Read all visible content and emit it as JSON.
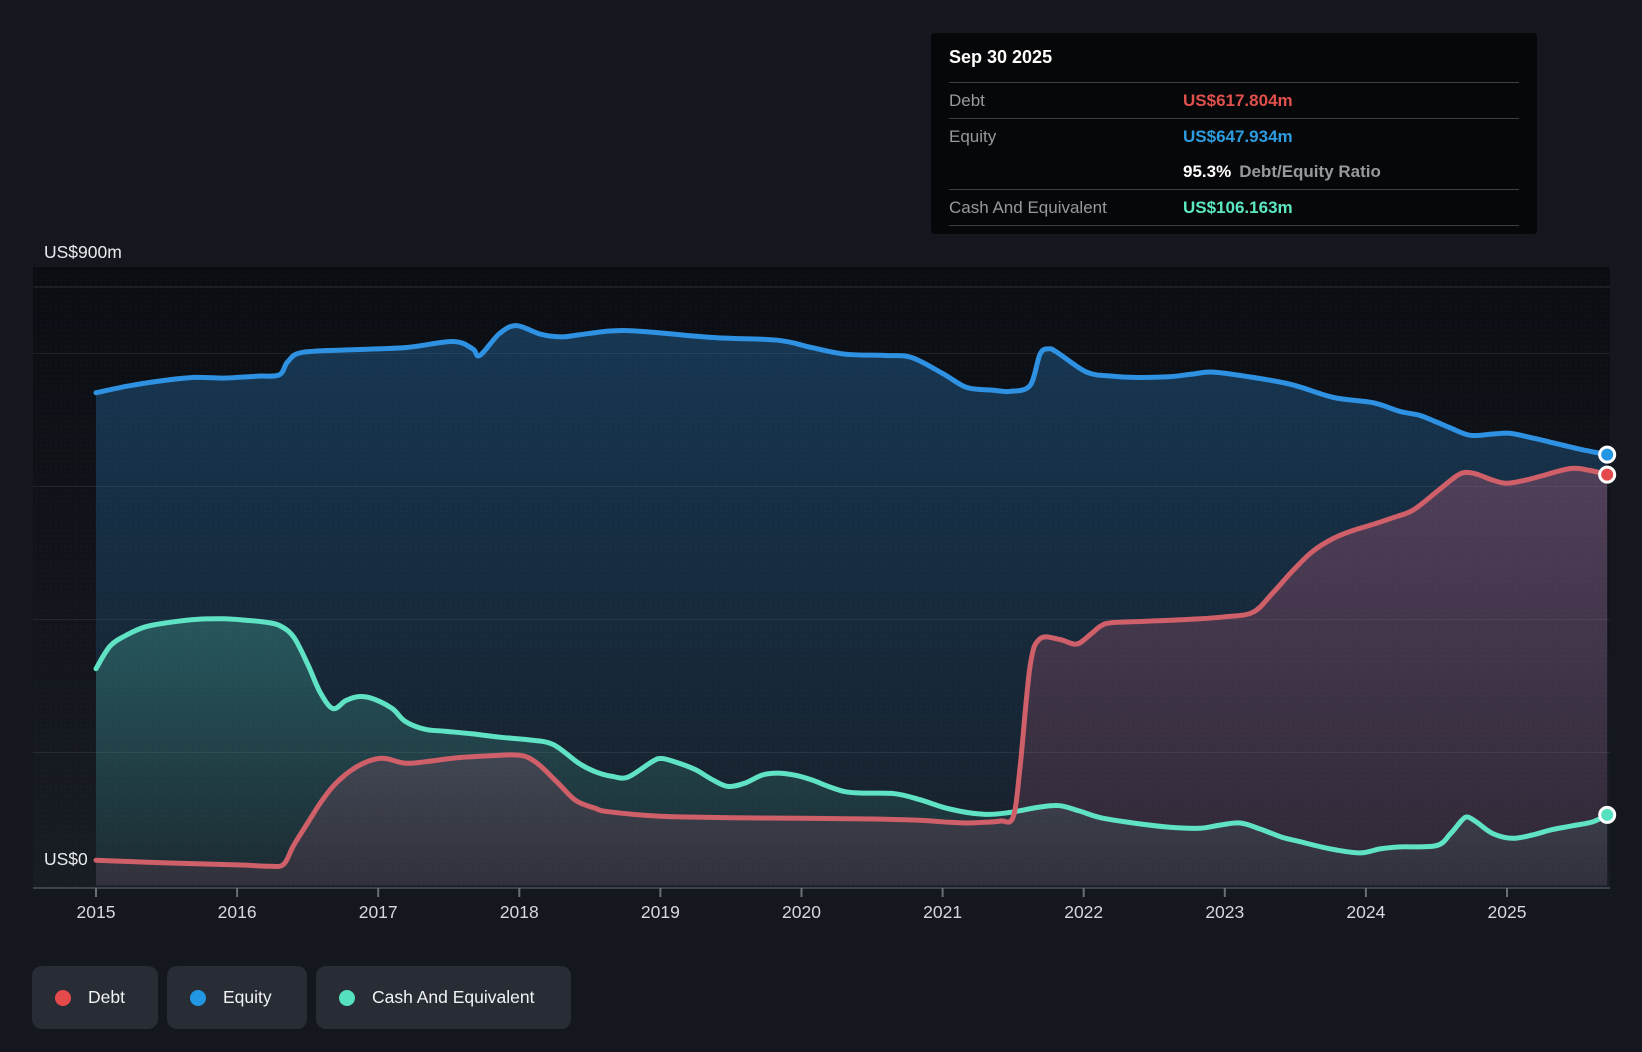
{
  "tooltip": {
    "date": "Sep 30 2025",
    "debt_label": "Debt",
    "debt_value": "US$617.804m",
    "equity_label": "Equity",
    "equity_value": "US$647.934m",
    "ratio_value": "95.3%",
    "ratio_label": "Debt/Equity Ratio",
    "cash_label": "Cash And Equivalent",
    "cash_value": "US$106.163m"
  },
  "y_axis": {
    "label_top": "US$900m",
    "label_zero": "US$0"
  },
  "x_axis": {
    "years": [
      2015,
      2016,
      2017,
      2018,
      2019,
      2020,
      2021,
      2022,
      2023,
      2024,
      2025
    ]
  },
  "legend": {
    "items": [
      {
        "label": "Debt",
        "series": "debt"
      },
      {
        "label": "Equity",
        "series": "equity"
      },
      {
        "label": "Cash And Equivalent",
        "series": "cash"
      }
    ]
  },
  "colors": {
    "debt_line": "#cf5f68",
    "equity_line": "#2e91e2",
    "cash_line": "#5fe3c4",
    "debt_accent": "#e4494c",
    "equity_accent": "#2196e3",
    "cash_accent": "#55e0c0",
    "debt_value_text": "#e0504c",
    "equity_value_text": "#2d9ce0",
    "cash_value_text": "#5ce8c2",
    "debt_fill": "199,93,124",
    "equity_fill": "42,128,198",
    "cash_fill": "88,224,193"
  },
  "chart_data": {
    "type": "area",
    "title": "Debt to Equity history",
    "x_range": [
      2014.55,
      2025.73
    ],
    "ylim": [
      0,
      900
    ],
    "gridline_values": [
      200,
      400,
      600,
      800,
      900
    ],
    "grid": true,
    "legend_position": "bottom",
    "units": "US$ millions",
    "series": [
      {
        "name": "Equity",
        "key": "equity",
        "points": [
          [
            2015.0,
            741
          ],
          [
            2015.25,
            752
          ],
          [
            2015.5,
            760
          ],
          [
            2015.7,
            764
          ],
          [
            2015.9,
            763
          ],
          [
            2016.0,
            764
          ],
          [
            2016.15,
            766
          ],
          [
            2016.3,
            768
          ],
          [
            2016.36,
            788
          ],
          [
            2016.47,
            802
          ],
          [
            2016.87,
            806
          ],
          [
            2017.2,
            809
          ],
          [
            2017.53,
            818
          ],
          [
            2017.67,
            807
          ],
          [
            2017.72,
            797
          ],
          [
            2017.86,
            830
          ],
          [
            2017.98,
            842
          ],
          [
            2018.15,
            829
          ],
          [
            2018.3,
            825
          ],
          [
            2018.42,
            828
          ],
          [
            2018.66,
            834
          ],
          [
            2018.89,
            833
          ],
          [
            2019.37,
            824
          ],
          [
            2019.83,
            820
          ],
          [
            2020.07,
            809
          ],
          [
            2020.31,
            799
          ],
          [
            2020.6,
            797
          ],
          [
            2020.78,
            794
          ],
          [
            2021.0,
            770
          ],
          [
            2021.17,
            749
          ],
          [
            2021.35,
            745
          ],
          [
            2021.48,
            743
          ],
          [
            2021.62,
            752
          ],
          [
            2021.69,
            799
          ],
          [
            2021.75,
            807
          ],
          [
            2021.81,
            802
          ],
          [
            2022.02,
            772
          ],
          [
            2022.2,
            766
          ],
          [
            2022.35,
            764
          ],
          [
            2022.6,
            765
          ],
          [
            2022.77,
            769
          ],
          [
            2022.92,
            772
          ],
          [
            2023.2,
            764
          ],
          [
            2023.48,
            753
          ],
          [
            2023.77,
            734
          ],
          [
            2024.05,
            726
          ],
          [
            2024.24,
            713
          ],
          [
            2024.38,
            707
          ],
          [
            2024.5,
            697
          ],
          [
            2024.6,
            688
          ],
          [
            2024.74,
            677
          ],
          [
            2024.9,
            679
          ],
          [
            2025.02,
            680
          ],
          [
            2025.16,
            674
          ],
          [
            2025.3,
            667
          ],
          [
            2025.52,
            656
          ],
          [
            2025.71,
            647.934
          ]
        ]
      },
      {
        "name": "Debt",
        "key": "debt",
        "points": [
          [
            2015.0,
            38
          ],
          [
            2015.5,
            34
          ],
          [
            2016.0,
            31
          ],
          [
            2016.23,
            29
          ],
          [
            2016.33,
            32
          ],
          [
            2016.4,
            60
          ],
          [
            2016.5,
            94
          ],
          [
            2016.59,
            124
          ],
          [
            2016.68,
            149
          ],
          [
            2016.77,
            167
          ],
          [
            2016.86,
            180
          ],
          [
            2016.96,
            189
          ],
          [
            2017.05,
            191
          ],
          [
            2017.19,
            184
          ],
          [
            2017.33,
            186
          ],
          [
            2017.56,
            192
          ],
          [
            2017.79,
            195
          ],
          [
            2018.0,
            196
          ],
          [
            2018.12,
            185
          ],
          [
            2018.27,
            155
          ],
          [
            2018.4,
            128
          ],
          [
            2018.54,
            116
          ],
          [
            2018.63,
            111
          ],
          [
            2019.0,
            104
          ],
          [
            2019.5,
            102
          ],
          [
            2020.0,
            101
          ],
          [
            2020.5,
            100
          ],
          [
            2020.84,
            98
          ],
          [
            2021.05,
            95
          ],
          [
            2021.17,
            94
          ],
          [
            2021.3,
            95
          ],
          [
            2021.41,
            97
          ],
          [
            2021.5,
            103
          ],
          [
            2021.55,
            180
          ],
          [
            2021.62,
            330
          ],
          [
            2021.69,
            371
          ],
          [
            2021.83,
            370
          ],
          [
            2021.95,
            363
          ],
          [
            2022.05,
            378
          ],
          [
            2022.12,
            390
          ],
          [
            2022.19,
            395
          ],
          [
            2022.4,
            397
          ],
          [
            2022.73,
            400
          ],
          [
            2023.0,
            404
          ],
          [
            2023.2,
            411
          ],
          [
            2023.34,
            440
          ],
          [
            2023.48,
            473
          ],
          [
            2023.62,
            502
          ],
          [
            2023.77,
            522
          ],
          [
            2023.91,
            534
          ],
          [
            2024.05,
            543
          ],
          [
            2024.19,
            553
          ],
          [
            2024.33,
            564
          ],
          [
            2024.49,
            590
          ],
          [
            2024.63,
            614
          ],
          [
            2024.7,
            621
          ],
          [
            2024.78,
            619
          ],
          [
            2024.88,
            611
          ],
          [
            2024.99,
            605
          ],
          [
            2025.12,
            609
          ],
          [
            2025.23,
            615
          ],
          [
            2025.45,
            627
          ],
          [
            2025.59,
            624
          ],
          [
            2025.71,
            617.804
          ]
        ]
      },
      {
        "name": "Cash And Equivalent",
        "key": "cash",
        "points": [
          [
            2015.0,
            326
          ],
          [
            2015.1,
            360
          ],
          [
            2015.22,
            377
          ],
          [
            2015.35,
            389
          ],
          [
            2015.5,
            395
          ],
          [
            2015.7,
            400
          ],
          [
            2015.9,
            401
          ],
          [
            2016.06,
            399
          ],
          [
            2016.2,
            396
          ],
          [
            2016.3,
            391
          ],
          [
            2016.4,
            374
          ],
          [
            2016.5,
            333
          ],
          [
            2016.59,
            290
          ],
          [
            2016.68,
            266
          ],
          [
            2016.77,
            278
          ],
          [
            2016.86,
            284
          ],
          [
            2016.96,
            281
          ],
          [
            2017.1,
            266
          ],
          [
            2017.19,
            247
          ],
          [
            2017.33,
            235
          ],
          [
            2017.47,
            232
          ],
          [
            2017.67,
            228
          ],
          [
            2017.86,
            223
          ],
          [
            2018.07,
            219
          ],
          [
            2018.24,
            212
          ],
          [
            2018.42,
            184
          ],
          [
            2018.54,
            171
          ],
          [
            2018.66,
            164
          ],
          [
            2018.77,
            163
          ],
          [
            2018.94,
            186
          ],
          [
            2019.01,
            191
          ],
          [
            2019.13,
            184
          ],
          [
            2019.25,
            174
          ],
          [
            2019.37,
            159
          ],
          [
            2019.48,
            149
          ],
          [
            2019.6,
            154
          ],
          [
            2019.72,
            166
          ],
          [
            2019.83,
            169
          ],
          [
            2019.95,
            166
          ],
          [
            2020.07,
            159
          ],
          [
            2020.19,
            149
          ],
          [
            2020.31,
            141
          ],
          [
            2020.43,
            139
          ],
          [
            2020.66,
            138
          ],
          [
            2020.84,
            129
          ],
          [
            2021.05,
            115
          ],
          [
            2021.29,
            107
          ],
          [
            2021.48,
            110
          ],
          [
            2021.69,
            118
          ],
          [
            2021.83,
            120
          ],
          [
            2021.97,
            112
          ],
          [
            2022.12,
            102
          ],
          [
            2022.35,
            94
          ],
          [
            2022.59,
            88
          ],
          [
            2022.82,
            86
          ],
          [
            2022.97,
            91
          ],
          [
            2023.11,
            94
          ],
          [
            2023.25,
            85
          ],
          [
            2023.4,
            73
          ],
          [
            2023.53,
            66
          ],
          [
            2023.75,
            55
          ],
          [
            2023.96,
            49
          ],
          [
            2024.1,
            55
          ],
          [
            2024.24,
            58
          ],
          [
            2024.5,
            60
          ],
          [
            2024.6,
            78
          ],
          [
            2024.68,
            98
          ],
          [
            2024.72,
            103
          ],
          [
            2024.78,
            96
          ],
          [
            2024.9,
            78
          ],
          [
            2025.04,
            71
          ],
          [
            2025.18,
            76
          ],
          [
            2025.32,
            84
          ],
          [
            2025.47,
            90
          ],
          [
            2025.61,
            96
          ],
          [
            2025.71,
            106.163
          ]
        ]
      }
    ],
    "end_values": {
      "debt": 617.804,
      "equity": 647.934,
      "cash": 106.163
    }
  }
}
